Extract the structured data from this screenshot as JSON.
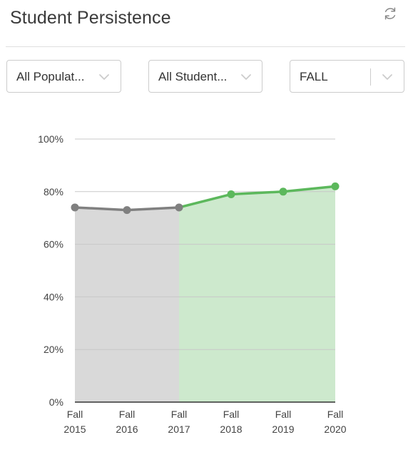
{
  "header": {
    "title": "Student Persistence",
    "refresh_icon": "refresh-icon"
  },
  "filters": [
    {
      "value": "All Populat...",
      "icon": "chevron-down-icon"
    },
    {
      "value": "All Student...",
      "icon": "chevron-down-icon"
    },
    {
      "value": "FALL",
      "icon": "chevron-down-icon"
    }
  ],
  "colors": {
    "past_line": "#808080",
    "past_fill": "#d9d9d9",
    "recent_line": "#5cb85c",
    "recent_fill": "#cde9cd",
    "grid": "#c8c8c8"
  },
  "chart_data": {
    "type": "area",
    "categories": [
      [
        "Fall",
        "2015"
      ],
      [
        "Fall",
        "2016"
      ],
      [
        "Fall",
        "2017"
      ],
      [
        "Fall",
        "2018"
      ],
      [
        "Fall",
        "2019"
      ],
      [
        "Fall",
        "2020"
      ]
    ],
    "values": [
      74,
      73,
      74,
      79,
      80,
      82
    ],
    "highlight_from_index": 2,
    "ylim": [
      0,
      100
    ],
    "yticks": [
      "0%",
      "20%",
      "40%",
      "60%",
      "80%",
      "100%"
    ],
    "ytick_values": [
      0,
      20,
      40,
      60,
      80,
      100
    ],
    "grid": true
  }
}
